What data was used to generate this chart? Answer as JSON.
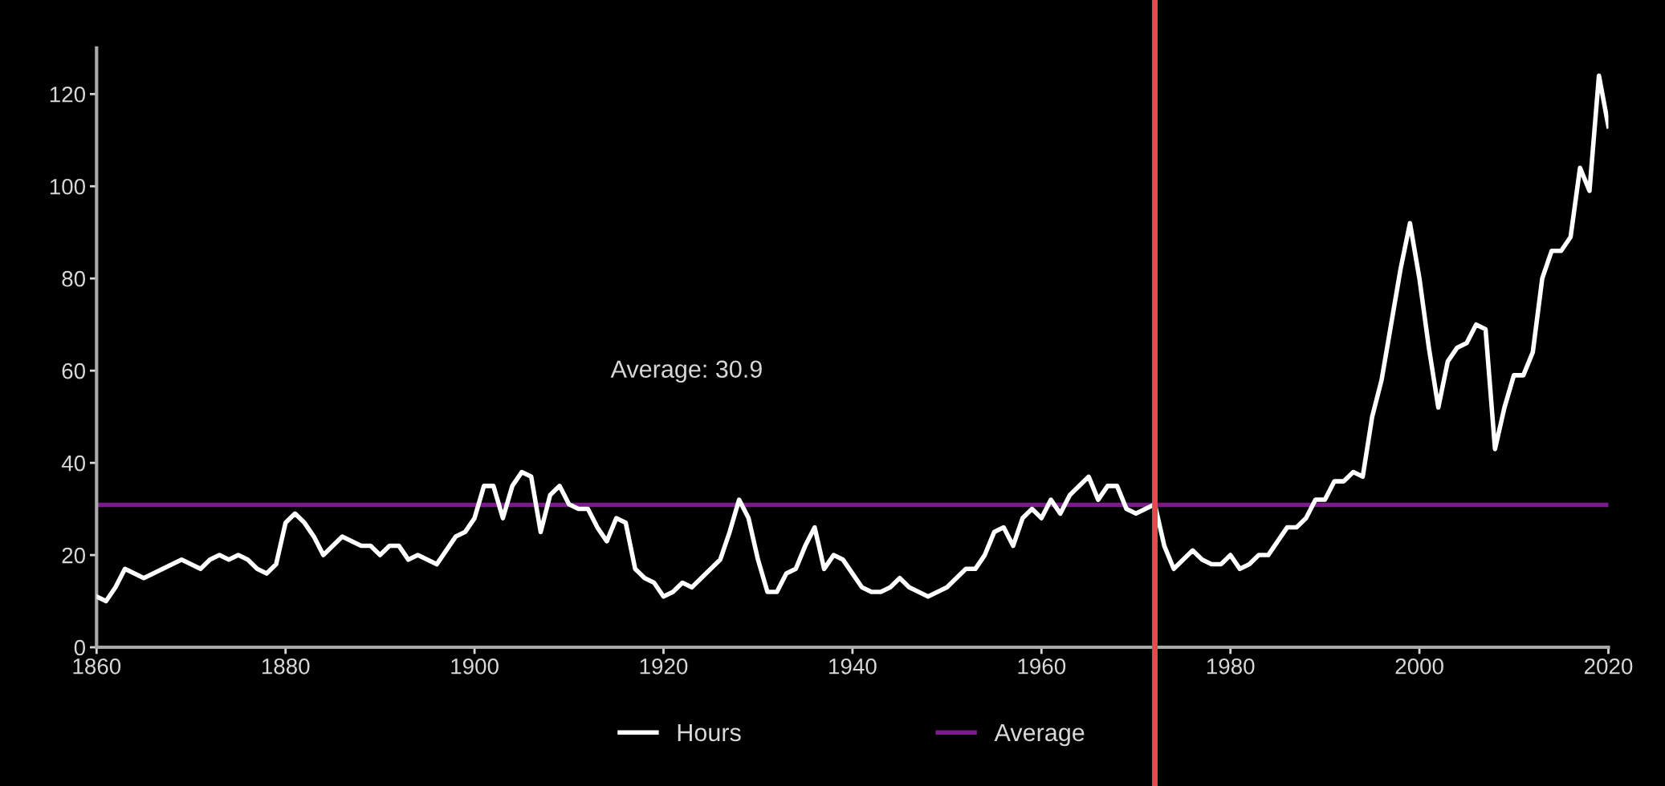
{
  "chart_data": {
    "type": "line",
    "x": [
      1860,
      1861,
      1862,
      1863,
      1864,
      1865,
      1866,
      1867,
      1868,
      1869,
      1870,
      1871,
      1872,
      1873,
      1874,
      1875,
      1876,
      1877,
      1878,
      1879,
      1880,
      1881,
      1882,
      1883,
      1884,
      1885,
      1886,
      1887,
      1888,
      1889,
      1890,
      1891,
      1892,
      1893,
      1894,
      1895,
      1896,
      1897,
      1898,
      1899,
      1900,
      1901,
      1902,
      1903,
      1904,
      1905,
      1906,
      1907,
      1908,
      1909,
      1910,
      1911,
      1912,
      1913,
      1914,
      1915,
      1916,
      1917,
      1918,
      1919,
      1920,
      1921,
      1922,
      1923,
      1924,
      1925,
      1926,
      1927,
      1928,
      1929,
      1930,
      1931,
      1932,
      1933,
      1934,
      1935,
      1936,
      1937,
      1938,
      1939,
      1940,
      1941,
      1942,
      1943,
      1944,
      1945,
      1946,
      1947,
      1948,
      1949,
      1950,
      1951,
      1952,
      1953,
      1954,
      1955,
      1956,
      1957,
      1958,
      1959,
      1960,
      1961,
      1962,
      1963,
      1964,
      1965,
      1966,
      1967,
      1968,
      1969,
      1970,
      1971,
      1972,
      1973,
      1974,
      1975,
      1976,
      1977,
      1978,
      1979,
      1980,
      1981,
      1982,
      1983,
      1984,
      1985,
      1986,
      1987,
      1988,
      1989,
      1990,
      1991,
      1992,
      1993,
      1994,
      1995,
      1996,
      1997,
      1998,
      1999,
      2000,
      2001,
      2002,
      2003,
      2004,
      2005,
      2006,
      2007,
      2008,
      2009,
      2010,
      2011,
      2012,
      2013,
      2014,
      2015,
      2016,
      2017,
      2018,
      2019,
      2020
    ],
    "series": [
      {
        "name": "Hours",
        "color": "#ffffff",
        "values": [
          11,
          10,
          13,
          17,
          16,
          15,
          16,
          17,
          18,
          19,
          18,
          17,
          19,
          20,
          19,
          20,
          19,
          17,
          16,
          18,
          27,
          29,
          27,
          24,
          20,
          22,
          24,
          23,
          22,
          22,
          20,
          22,
          22,
          19,
          20,
          19,
          18,
          21,
          24,
          25,
          28,
          35,
          35,
          28,
          35,
          38,
          37,
          25,
          33,
          35,
          31,
          30,
          30,
          26,
          23,
          28,
          27,
          17,
          15,
          14,
          11,
          12,
          14,
          13,
          15,
          17,
          19,
          25,
          32,
          28,
          19,
          12,
          12,
          16,
          17,
          22,
          26,
          17,
          20,
          19,
          16,
          13,
          12,
          12,
          13,
          15,
          13,
          12,
          11,
          12,
          13,
          15,
          17,
          17,
          20,
          25,
          26,
          22,
          28,
          30,
          28,
          32,
          29,
          33,
          35,
          37,
          32,
          35,
          35,
          30,
          29,
          30,
          31,
          22,
          17,
          19,
          21,
          19,
          18,
          18,
          20,
          17,
          18,
          20,
          20,
          23,
          26,
          26,
          28,
          32,
          32,
          36,
          36,
          38,
          37,
          50,
          58,
          70,
          82,
          92,
          80,
          65,
          52,
          62,
          65,
          66,
          70,
          69,
          43,
          52,
          59,
          59,
          64,
          80,
          86,
          86,
          89,
          104,
          99,
          124,
          113
        ]
      },
      {
        "name": "Average",
        "color": "#7b1a8a",
        "x": [
          1860,
          2020
        ],
        "values": [
          30.9,
          30.9
        ]
      }
    ],
    "annotations": [
      "Average: 30.9"
    ],
    "ref_lines": [
      {
        "axis": "x",
        "value": 1972,
        "color": "#e8474f"
      }
    ],
    "xlim": [
      1860,
      2020
    ],
    "xticks": [
      1860,
      1880,
      1900,
      1920,
      1940,
      1960,
      1980,
      2000,
      2020
    ],
    "ylim": [
      0,
      130
    ],
    "yticks": [
      0,
      20,
      40,
      60,
      80,
      100,
      120
    ],
    "grid": false,
    "legend": "bottom"
  }
}
